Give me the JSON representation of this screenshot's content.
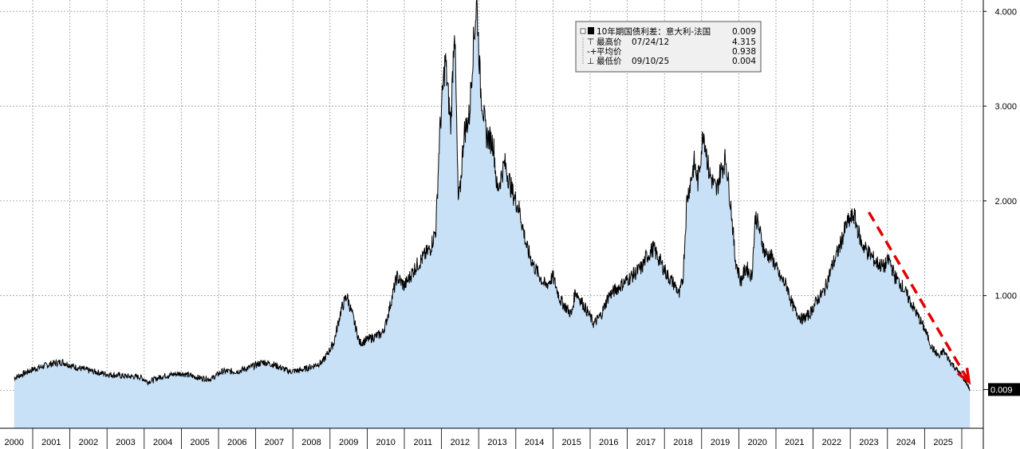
{
  "chart_data": {
    "type": "area",
    "x_labels": [
      "2000",
      "2001",
      "2002",
      "2003",
      "2004",
      "2005",
      "2006",
      "2007",
      "2008",
      "2009",
      "2010",
      "2011",
      "2012",
      "2013",
      "2014",
      "2015",
      "2016",
      "2017",
      "2018",
      "2019",
      "2020",
      "2021",
      "2022",
      "2023",
      "2024",
      "2025"
    ],
    "y_ticks": [
      "1.000",
      "2.000",
      "3.000",
      "4.000"
    ],
    "ylim": [
      -0.4,
      4.12
    ],
    "grid": true,
    "series": [
      {
        "name": "10年期国债利差：意大利-法国",
        "last_value": "0.009",
        "points": [
          [
            2000.0,
            0.13
          ],
          [
            2000.5,
            0.22
          ],
          [
            2001.0,
            0.28
          ],
          [
            2001.3,
            0.3
          ],
          [
            2001.6,
            0.25
          ],
          [
            2002.0,
            0.21
          ],
          [
            2002.5,
            0.17
          ],
          [
            2003.0,
            0.15
          ],
          [
            2003.4,
            0.14
          ],
          [
            2003.6,
            0.09
          ],
          [
            2004.0,
            0.15
          ],
          [
            2004.5,
            0.18
          ],
          [
            2005.0,
            0.13
          ],
          [
            2005.3,
            0.12
          ],
          [
            2005.6,
            0.2
          ],
          [
            2006.0,
            0.2
          ],
          [
            2006.4,
            0.25
          ],
          [
            2006.7,
            0.3
          ],
          [
            2007.0,
            0.27
          ],
          [
            2007.4,
            0.2
          ],
          [
            2007.7,
            0.21
          ],
          [
            2008.0,
            0.25
          ],
          [
            2008.3,
            0.3
          ],
          [
            2008.6,
            0.5
          ],
          [
            2008.8,
            0.85
          ],
          [
            2008.95,
            1.0
          ],
          [
            2009.1,
            0.8
          ],
          [
            2009.3,
            0.5
          ],
          [
            2009.6,
            0.55
          ],
          [
            2009.9,
            0.6
          ],
          [
            2010.0,
            0.7
          ],
          [
            2010.3,
            1.2
          ],
          [
            2010.5,
            1.1
          ],
          [
            2010.8,
            1.3
          ],
          [
            2011.0,
            1.4
          ],
          [
            2011.2,
            1.5
          ],
          [
            2011.35,
            1.7
          ],
          [
            2011.45,
            2.7
          ],
          [
            2011.6,
            3.5
          ],
          [
            2011.75,
            2.8
          ],
          [
            2011.85,
            3.9
          ],
          [
            2011.95,
            2.0
          ],
          [
            2012.0,
            2.1
          ],
          [
            2012.1,
            2.7
          ],
          [
            2012.25,
            2.9
          ],
          [
            2012.35,
            3.6
          ],
          [
            2012.45,
            4.1
          ],
          [
            2012.55,
            3.2
          ],
          [
            2012.7,
            2.7
          ],
          [
            2012.9,
            2.6
          ],
          [
            2013.0,
            2.1
          ],
          [
            2013.2,
            2.4
          ],
          [
            2013.4,
            2.1
          ],
          [
            2013.6,
            1.9
          ],
          [
            2013.8,
            1.5
          ],
          [
            2014.0,
            1.3
          ],
          [
            2014.3,
            1.1
          ],
          [
            2014.5,
            1.2
          ],
          [
            2014.7,
            0.95
          ],
          [
            2015.0,
            0.8
          ],
          [
            2015.1,
            1.05
          ],
          [
            2015.4,
            0.85
          ],
          [
            2015.6,
            0.7
          ],
          [
            2015.8,
            0.8
          ],
          [
            2016.0,
            1.0
          ],
          [
            2016.3,
            1.1
          ],
          [
            2016.6,
            1.2
          ],
          [
            2016.9,
            1.3
          ],
          [
            2017.0,
            1.4
          ],
          [
            2017.2,
            1.5
          ],
          [
            2017.4,
            1.35
          ],
          [
            2017.6,
            1.2
          ],
          [
            2017.8,
            1.1
          ],
          [
            2017.9,
            1.0
          ],
          [
            2018.0,
            1.2
          ],
          [
            2018.1,
            2.0
          ],
          [
            2018.3,
            2.4
          ],
          [
            2018.4,
            2.2
          ],
          [
            2018.55,
            2.75
          ],
          [
            2018.7,
            2.3
          ],
          [
            2018.9,
            2.1
          ],
          [
            2019.0,
            2.3
          ],
          [
            2019.15,
            2.45
          ],
          [
            2019.3,
            1.9
          ],
          [
            2019.4,
            1.4
          ],
          [
            2019.55,
            1.15
          ],
          [
            2019.7,
            1.3
          ],
          [
            2019.85,
            1.2
          ],
          [
            2019.95,
            1.85
          ],
          [
            2020.05,
            1.7
          ],
          [
            2020.2,
            1.45
          ],
          [
            2020.4,
            1.4
          ],
          [
            2020.6,
            1.2
          ],
          [
            2020.8,
            1.1
          ],
          [
            2020.9,
            0.95
          ],
          [
            2021.0,
            0.85
          ],
          [
            2021.2,
            0.75
          ],
          [
            2021.4,
            0.8
          ],
          [
            2021.6,
            0.95
          ],
          [
            2021.8,
            1.05
          ],
          [
            2022.0,
            1.3
          ],
          [
            2022.2,
            1.5
          ],
          [
            2022.4,
            1.75
          ],
          [
            2022.6,
            1.85
          ],
          [
            2022.8,
            1.55
          ],
          [
            2023.0,
            1.45
          ],
          [
            2023.2,
            1.35
          ],
          [
            2023.4,
            1.3
          ],
          [
            2023.55,
            1.38
          ],
          [
            2023.7,
            1.2
          ],
          [
            2023.9,
            1.1
          ],
          [
            2024.1,
            0.95
          ],
          [
            2024.3,
            0.8
          ],
          [
            2024.5,
            0.65
          ],
          [
            2024.7,
            0.45
          ],
          [
            2024.9,
            0.35
          ],
          [
            2025.0,
            0.42
          ],
          [
            2025.2,
            0.3
          ],
          [
            2025.4,
            0.2
          ],
          [
            2025.6,
            0.1
          ],
          [
            2025.72,
            0.009
          ]
        ]
      }
    ],
    "legend": {
      "title": "10年期国债利差：意大利-法国",
      "last": "0.009",
      "rows": [
        {
          "label": "最高价",
          "date": "07/24/12",
          "value": "4.315"
        },
        {
          "label": "平均价",
          "date": "",
          "value": "0.938"
        },
        {
          "label": "最低价",
          "date": "09/10/25",
          "value": "0.004"
        }
      ]
    },
    "trend_arrow": {
      "from": [
        2023.0,
        1.88
      ],
      "to": [
        2025.65,
        0.12
      ]
    },
    "colors": {
      "line": "#000000",
      "area_fill": "#c8e1f7",
      "grid": "#9a9a9a",
      "arrow": "#e00000",
      "legend_bg": "#f0f0f0",
      "last_value_bg": "#000000"
    }
  }
}
